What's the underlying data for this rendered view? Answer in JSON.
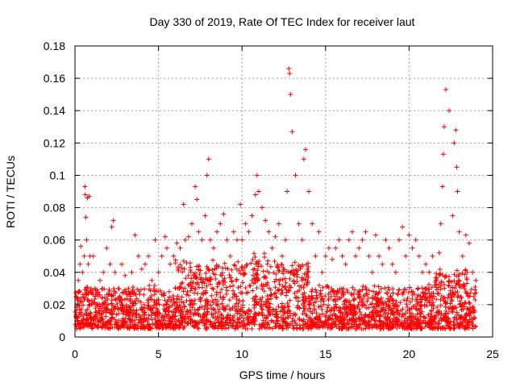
{
  "chart_data": {
    "type": "scatter",
    "title": "Day 330 of 2019, Rate Of TEC Index for receiver laut",
    "xlabel": "GPS time / hours",
    "ylabel": "ROTI / TECUs",
    "xlim": [
      0,
      25
    ],
    "ylim": [
      0,
      0.18
    ],
    "xticks": [
      0,
      5,
      10,
      15,
      20,
      25
    ],
    "xtick_labels": [
      "0",
      "5",
      "10",
      "15",
      "20",
      "25"
    ],
    "yticks": [
      0,
      0.02,
      0.04,
      0.06,
      0.08,
      0.1,
      0.12,
      0.14,
      0.16,
      0.18
    ],
    "ytick_labels": [
      "0",
      "0.02",
      "0.04",
      "0.06",
      "0.08",
      "0.1",
      "0.12",
      "0.14",
      "0.16",
      "0.18"
    ],
    "grid": true,
    "marker": "+",
    "color": "#ff0000",
    "series": [
      {
        "name": "ROTI",
        "x": [
          0.1,
          0.2,
          0.3,
          0.35,
          0.45,
          0.55,
          0.6,
          0.62,
          0.65,
          0.7,
          0.75,
          0.8,
          0.85,
          0.9,
          0.95,
          1.0,
          1.1,
          1.2,
          1.3,
          1.5,
          1.7,
          1.9,
          2.1,
          2.2,
          2.3,
          2.4,
          2.6,
          2.8,
          3.0,
          3.2,
          3.4,
          3.6,
          3.8,
          4.0,
          4.2,
          4.4,
          4.6,
          4.8,
          5.0,
          5.2,
          5.4,
          5.5,
          5.7,
          5.9,
          6.1,
          6.3,
          6.5,
          6.6,
          6.8,
          7.0,
          7.2,
          7.3,
          7.4,
          7.6,
          7.8,
          7.9,
          8.0,
          8.1,
          8.3,
          8.5,
          8.7,
          8.9,
          9.1,
          9.3,
          9.5,
          9.7,
          9.9,
          10.0,
          10.2,
          10.4,
          10.6,
          10.8,
          10.9,
          11.0,
          11.2,
          11.4,
          11.6,
          11.8,
          12.0,
          12.2,
          12.4,
          12.6,
          12.7,
          12.8,
          12.85,
          12.9,
          13.0,
          13.2,
          13.4,
          13.6,
          13.7,
          13.8,
          14.0,
          14.2,
          14.4,
          14.6,
          14.8,
          15.0,
          15.2,
          15.4,
          15.6,
          15.8,
          16.0,
          16.2,
          16.4,
          16.6,
          16.8,
          17.0,
          17.2,
          17.4,
          17.6,
          17.8,
          18.0,
          18.2,
          18.4,
          18.6,
          18.8,
          19.0,
          19.2,
          19.4,
          19.6,
          19.8,
          20.0,
          20.2,
          20.4,
          20.6,
          20.8,
          21.0,
          21.2,
          21.4,
          21.6,
          21.8,
          21.9,
          22.0,
          22.05,
          22.1,
          22.2,
          22.4,
          22.6,
          22.7,
          22.8,
          22.85,
          22.9,
          23.0,
          23.2,
          23.4,
          23.6,
          23.8,
          24.0
        ],
        "y": [
          0.018,
          0.035,
          0.045,
          0.056,
          0.04,
          0.05,
          0.093,
          0.088,
          0.074,
          0.06,
          0.086,
          0.045,
          0.087,
          0.05,
          0.03,
          0.02,
          0.05,
          0.03,
          0.02,
          0.035,
          0.04,
          0.055,
          0.045,
          0.068,
          0.072,
          0.04,
          0.03,
          0.045,
          0.038,
          0.03,
          0.04,
          0.063,
          0.05,
          0.042,
          0.045,
          0.05,
          0.035,
          0.06,
          0.04,
          0.05,
          0.062,
          0.055,
          0.045,
          0.05,
          0.058,
          0.055,
          0.082,
          0.06,
          0.062,
          0.07,
          0.093,
          0.085,
          0.065,
          0.06,
          0.075,
          0.1,
          0.11,
          0.06,
          0.055,
          0.065,
          0.07,
          0.076,
          0.06,
          0.05,
          0.065,
          0.06,
          0.082,
          0.06,
          0.07,
          0.065,
          0.075,
          0.088,
          0.1,
          0.09,
          0.08,
          0.072,
          0.065,
          0.055,
          0.062,
          0.07,
          0.05,
          0.06,
          0.09,
          0.166,
          0.163,
          0.15,
          0.127,
          0.1,
          0.07,
          0.06,
          0.11,
          0.116,
          0.09,
          0.07,
          0.05,
          0.065,
          0.04,
          0.05,
          0.055,
          0.048,
          0.055,
          0.06,
          0.05,
          0.045,
          0.06,
          0.065,
          0.05,
          0.055,
          0.06,
          0.065,
          0.05,
          0.04,
          0.063,
          0.05,
          0.045,
          0.06,
          0.055,
          0.045,
          0.04,
          0.06,
          0.068,
          0.05,
          0.063,
          0.055,
          0.06,
          0.05,
          0.04,
          0.045,
          0.04,
          0.05,
          0.035,
          0.052,
          0.07,
          0.093,
          0.113,
          0.13,
          0.153,
          0.14,
          0.075,
          0.12,
          0.128,
          0.105,
          0.09,
          0.065,
          0.05,
          0.063,
          0.058,
          0.04,
          0.035
        ]
      }
    ],
    "baseline_band": {
      "description_value_range": [
        0.005,
        0.035
      ],
      "x_range": [
        0,
        24
      ],
      "density": "dense"
    }
  }
}
